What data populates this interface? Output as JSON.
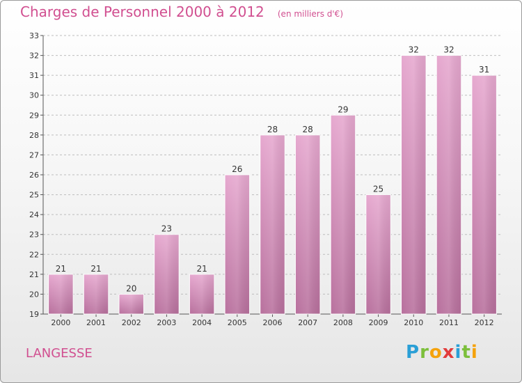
{
  "header": {
    "title": "Charges de Personnel 2000 à 2012",
    "subtitle": "(en milliers d'€)"
  },
  "commune": "LANGESSE",
  "brand": {
    "letters": [
      "P",
      "r",
      "o",
      "x",
      "i",
      "t",
      "i"
    ]
  },
  "colors": {
    "bar_light": "#e6a8cf",
    "bar_dark": "#b8709d",
    "title": "#d14f90"
  },
  "chart_data": {
    "type": "bar",
    "categories": [
      "2000",
      "2001",
      "2002",
      "2003",
      "2004",
      "2005",
      "2006",
      "2007",
      "2008",
      "2009",
      "2010",
      "2011",
      "2012"
    ],
    "values": [
      21,
      21,
      20,
      23,
      21,
      26,
      28,
      28,
      29,
      25,
      32,
      32,
      31
    ],
    "title": "Charges de Personnel 2000 à 2012",
    "subtitle": "(en milliers d'€)",
    "xlabel": "",
    "ylabel": "",
    "ylim": [
      19,
      33
    ],
    "yticks": [
      19,
      20,
      21,
      22,
      23,
      24,
      25,
      26,
      27,
      28,
      29,
      30,
      31,
      32,
      33
    ],
    "grid": true,
    "data_labels": true
  }
}
